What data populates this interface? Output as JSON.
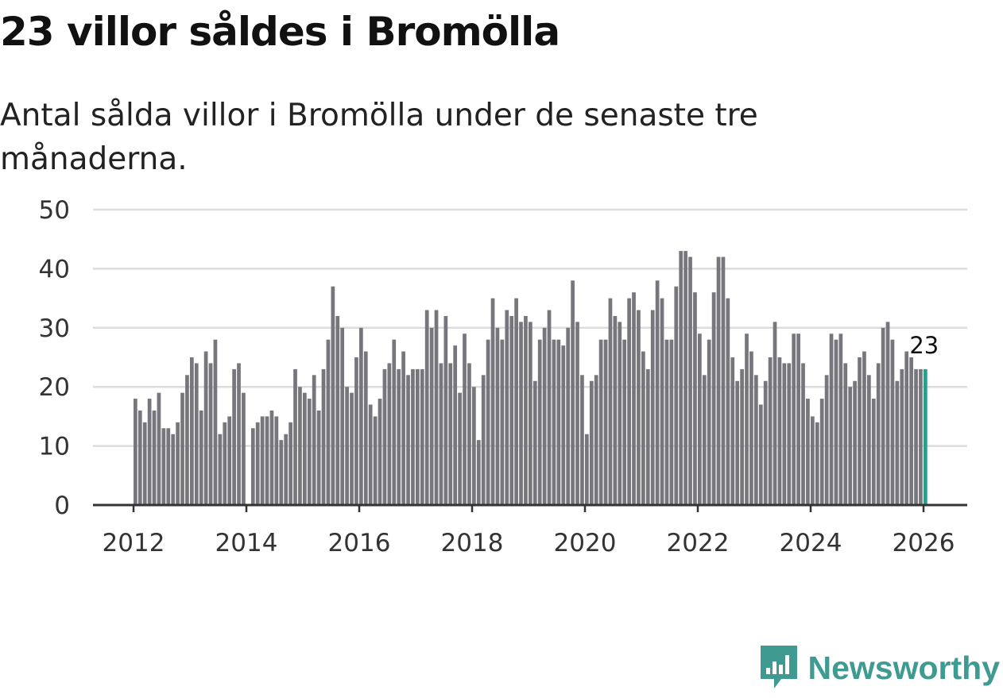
{
  "title": "23 villor såldes i Bromölla",
  "subtitle": "Antal sålda villor i Bromölla under de senaste tre månaderna.",
  "brand": "Newsworthy",
  "colors": {
    "bar": "#76767c",
    "highlight": "#2a9d8f",
    "brand": "#3f9a92"
  },
  "chart_data": {
    "type": "bar",
    "title": "23 villor såldes i Bromölla",
    "xlabel": "",
    "ylabel": "",
    "ylim": [
      0,
      50
    ],
    "yticks": [
      0,
      10,
      20,
      30,
      40,
      50
    ],
    "xticks": [
      "2012",
      "2014",
      "2016",
      "2018",
      "2020",
      "2022",
      "2024",
      "2026"
    ],
    "start": "2012-01",
    "grid": true,
    "legend": "none",
    "highlight_label": "23",
    "values": [
      18,
      16,
      14,
      18,
      16,
      19,
      13,
      13,
      12,
      14,
      19,
      22,
      25,
      24,
      16,
      26,
      24,
      28,
      12,
      14,
      15,
      23,
      24,
      19,
      0,
      13,
      14,
      15,
      15,
      16,
      15,
      11,
      12,
      14,
      23,
      20,
      19,
      18,
      22,
      16,
      23,
      28,
      37,
      32,
      30,
      20,
      19,
      25,
      30,
      26,
      17,
      15,
      18,
      23,
      24,
      28,
      23,
      26,
      22,
      23,
      23,
      23,
      33,
      30,
      33,
      24,
      32,
      24,
      27,
      19,
      29,
      24,
      20,
      11,
      22,
      28,
      35,
      30,
      28,
      33,
      32,
      35,
      31,
      32,
      31,
      21,
      28,
      30,
      33,
      28,
      28,
      27,
      30,
      38,
      31,
      22,
      12,
      21,
      22,
      28,
      28,
      35,
      32,
      31,
      28,
      35,
      36,
      33,
      26,
      23,
      33,
      38,
      35,
      28,
      28,
      37,
      43,
      43,
      42,
      36,
      29,
      22,
      28,
      36,
      42,
      42,
      35,
      25,
      21,
      23,
      29,
      26,
      22,
      17,
      21,
      25,
      31,
      25,
      24,
      24,
      29,
      29,
      24,
      18,
      15,
      14,
      18,
      22,
      29,
      28,
      29,
      24,
      20,
      21,
      25,
      26,
      22,
      18,
      24,
      30,
      31,
      28,
      21,
      23,
      26,
      25,
      23,
      23,
      23
    ]
  }
}
